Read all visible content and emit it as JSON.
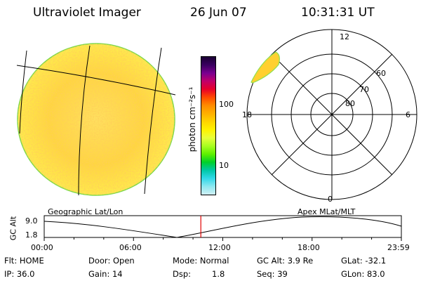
{
  "header": {
    "title": "Ultraviolet Imager",
    "date": "26 Jun 07",
    "time": "10:31:31 UT"
  },
  "colorbar": {
    "unit_label": "photon cm⁻²s⁻¹",
    "ticks": [
      "100",
      "10"
    ],
    "colors": [
      "#1a0033",
      "#3a0060",
      "#7a0090",
      "#c0006a",
      "#e8002a",
      "#ff4a00",
      "#ff8c00",
      "#ffb000",
      "#ffd400",
      "#fff200",
      "#e8ff3a",
      "#a8ff20",
      "#5ef000",
      "#00d02a",
      "#00c8a8",
      "#30d8e8",
      "#8ee8f0",
      "#d0f0f4"
    ]
  },
  "polar_plot": {
    "mlt_labels": [
      "12",
      "18",
      "6",
      "0"
    ],
    "mlat_labels": [
      "60",
      "70",
      "80"
    ]
  },
  "timeline": {
    "left_label": "Geographic Lat/Lon",
    "right_label": "Apex MLat/MLT",
    "y_axis_title": "GC Alt",
    "y_ticks": [
      "9.0",
      "1.8"
    ],
    "x_ticks": [
      "00:00",
      "06:00",
      "12:00",
      "18:00",
      "23:59"
    ],
    "current_time_marker": "10:31:31",
    "marker_color": "#e00000"
  },
  "info": {
    "row1": {
      "flt": "Flt: HOME",
      "door": "Door: Open",
      "mode": "Mode: Normal",
      "gc_alt": "GC Alt: 3.9 Re",
      "glat": "GLat: -32.1"
    },
    "row2": {
      "ip": "IP: 36.0",
      "gain": "Gain: 14",
      "dsp_label": "Dsp:",
      "dsp_value": "1.8",
      "seq": "Seq: 39",
      "glon": "GLon: 83.0"
    }
  }
}
